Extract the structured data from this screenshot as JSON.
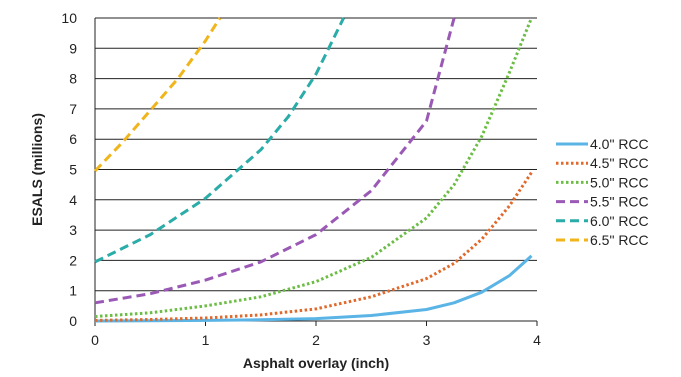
{
  "chart_data": {
    "type": "line",
    "title": "",
    "xlabel": "Asphalt overlay (inch)",
    "ylabel": "ESALS (millions)",
    "xlim": [
      0,
      4
    ],
    "ylim": [
      0,
      10
    ],
    "xticks": [
      "0",
      "1",
      "2",
      "3",
      "4"
    ],
    "yticks": [
      "0",
      "1",
      "2",
      "3",
      "4",
      "5",
      "6",
      "7",
      "8",
      "9",
      "10"
    ],
    "grid": "horizontal",
    "legend_position": "right",
    "series": [
      {
        "name": "4.0\" RCC",
        "color": "#5ab4e5",
        "style": "solid",
        "x": [
          0,
          0.5,
          1.0,
          1.5,
          2.0,
          2.5,
          3.0,
          3.25,
          3.5,
          3.75,
          3.95
        ],
        "y": [
          0.0,
          0.01,
          0.02,
          0.04,
          0.08,
          0.18,
          0.38,
          0.6,
          0.95,
          1.5,
          2.15
        ]
      },
      {
        "name": "4.5\" RCC",
        "color": "#e0692c",
        "style": "dotted",
        "x": [
          0,
          0.5,
          1.0,
          1.5,
          2.0,
          2.5,
          3.0,
          3.25,
          3.5,
          3.75,
          3.95
        ],
        "y": [
          0.02,
          0.05,
          0.1,
          0.2,
          0.4,
          0.8,
          1.4,
          1.9,
          2.7,
          3.8,
          4.9
        ]
      },
      {
        "name": "5.0\" RCC",
        "color": "#6cbd45",
        "style": "dotted",
        "x": [
          0,
          0.5,
          1.0,
          1.5,
          2.0,
          2.5,
          3.0,
          3.25,
          3.5,
          3.75,
          3.95
        ],
        "y": [
          0.15,
          0.27,
          0.5,
          0.8,
          1.3,
          2.1,
          3.4,
          4.5,
          6.1,
          8.2,
          10.0
        ]
      },
      {
        "name": "5.5\" RCC",
        "color": "#9b59b6",
        "style": "dashed",
        "x": [
          0,
          0.5,
          1.0,
          1.5,
          2.0,
          2.5,
          3.0,
          3.25
        ],
        "y": [
          0.6,
          0.9,
          1.35,
          1.95,
          2.85,
          4.3,
          6.6,
          10.0
        ]
      },
      {
        "name": "6.0\" RCC",
        "color": "#2aaca8",
        "style": "dashed",
        "x": [
          0,
          0.5,
          1.0,
          1.5,
          1.75,
          2.0,
          2.25
        ],
        "y": [
          1.95,
          2.85,
          4.05,
          5.65,
          6.75,
          8.15,
          10.0
        ]
      },
      {
        "name": "6.5\" RCC",
        "color": "#f1b51c",
        "style": "dashed",
        "x": [
          0,
          0.25,
          0.5,
          0.75,
          1.0,
          1.13
        ],
        "y": [
          4.95,
          5.9,
          6.95,
          8.0,
          9.25,
          10.0
        ]
      }
    ]
  }
}
